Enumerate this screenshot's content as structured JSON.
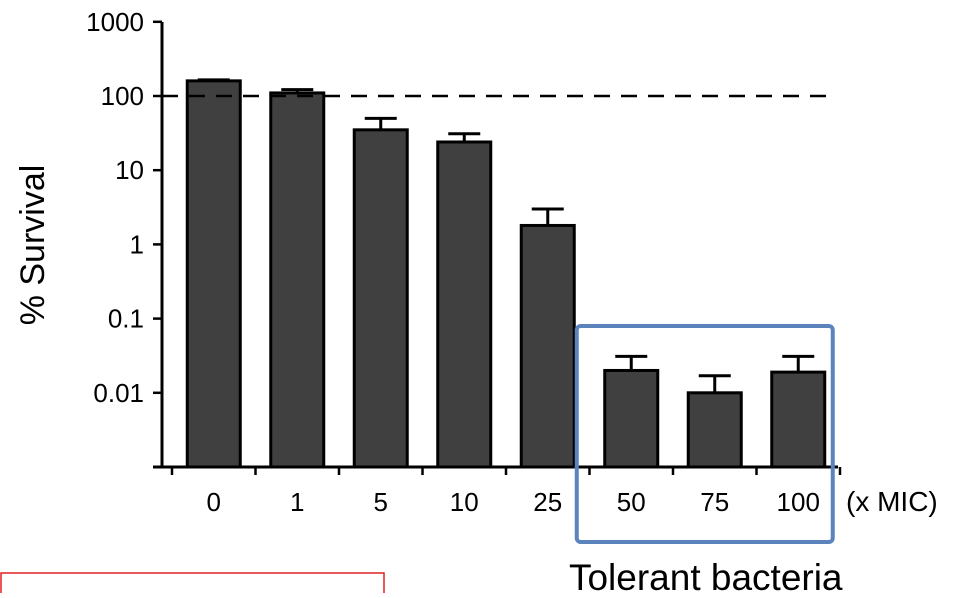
{
  "chart_data": {
    "type": "bar",
    "ylabel": "% Survival",
    "x_unit_label": "(x MIC)",
    "yscale": "log",
    "ylim": [
      0.001,
      1000
    ],
    "y_ticks": [
      {
        "value": 1000,
        "label": "1000"
      },
      {
        "value": 100,
        "label": "100"
      },
      {
        "value": 10,
        "label": "10"
      },
      {
        "value": 1,
        "label": "1"
      },
      {
        "value": 0.1,
        "label": "0.1"
      },
      {
        "value": 0.01,
        "label": "0.01"
      }
    ],
    "categories": [
      "0",
      "1",
      "5",
      "10",
      "25",
      "50",
      "75",
      "100"
    ],
    "values": [
      160,
      110,
      35,
      24,
      1.8,
      0.02,
      0.01,
      0.019
    ],
    "error_upper": [
      165,
      122,
      50,
      31,
      3.0,
      0.031,
      0.017,
      0.031
    ],
    "reference_line": {
      "value": 100,
      "style": "dashed"
    },
    "highlight": {
      "categories": [
        "50",
        "75",
        "100"
      ],
      "label": "Tolerant bacteria",
      "color": "#5b84bd"
    },
    "bar_color": "#404040"
  }
}
